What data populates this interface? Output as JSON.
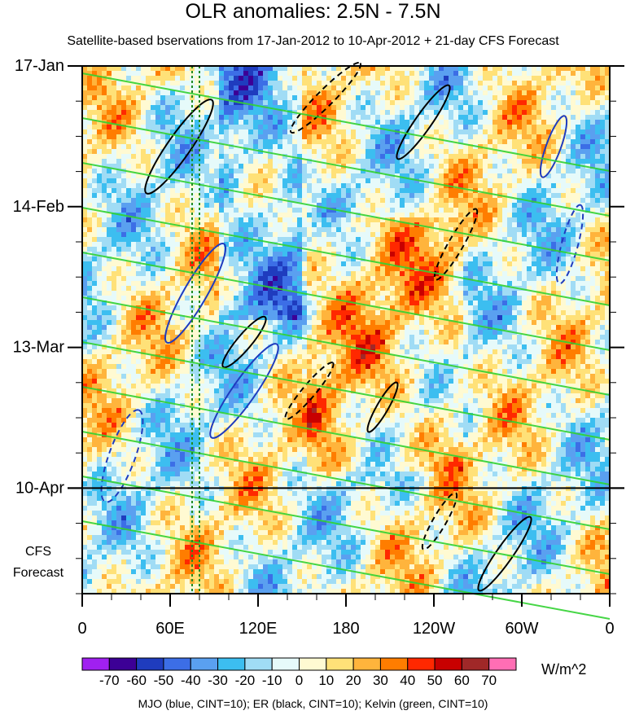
{
  "chart_data": {
    "type": "heatmap",
    "title": "OLR anomalies: 2.5N - 7.5N",
    "subtitle": "Satellite-based bservations from 17-Jan-2012 to 10-Apr-2012 + 21-day CFS Forecast",
    "x_ticks": [
      "0",
      "60E",
      "120E",
      "180",
      "120W",
      "60W",
      "0"
    ],
    "x_tick_values": [
      0,
      60,
      120,
      180,
      240,
      300,
      360
    ],
    "xlim": [
      0,
      360
    ],
    "y_ticks": [
      "17-Jan",
      "14-Feb",
      "13-Mar",
      "10-Apr"
    ],
    "y_tick_values": [
      0,
      28,
      56,
      84
    ],
    "ylim": [
      0,
      105
    ],
    "forecast_label": [
      "CFS",
      "Forecast"
    ],
    "observation_end_day": 84,
    "colorbar": {
      "labels": [
        "-70",
        "-60",
        "-50",
        "-40",
        "-30",
        "-20",
        "-10",
        "0",
        "10",
        "20",
        "30",
        "40",
        "50",
        "60",
        "70"
      ],
      "colors": [
        "#a020f0",
        "#3c0096",
        "#1f3cbe",
        "#3c6ee6",
        "#5aa0f0",
        "#3cbef0",
        "#a0dcf5",
        "#e6fafa",
        "#fffad2",
        "#ffe178",
        "#ffb43c",
        "#ff7d00",
        "#ff2800",
        "#c80000",
        "#a02828",
        "#ff6eb4"
      ],
      "unit": "W/m^2"
    },
    "contour_legend": "MJO (blue, CINT=10); ER (black, CINT=10); Kelvin (green, CINT=10)",
    "contour_colors": {
      "mjo": "#1f3cbe",
      "er": "#000000",
      "kelvin": "#32d232"
    }
  }
}
